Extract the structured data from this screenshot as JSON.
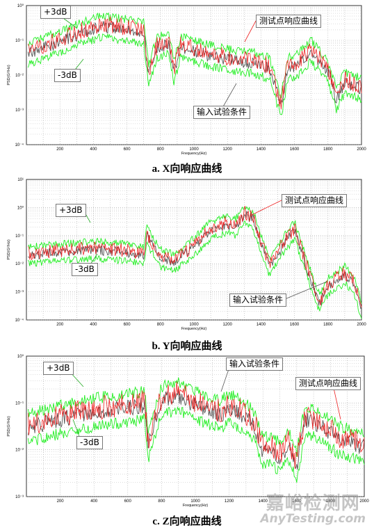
{
  "colors": {
    "tolerance": "#22ee22",
    "response": "#ee2222",
    "input": "#555555",
    "grid": "#9a9a9a"
  },
  "chart_data": [
    {
      "type": "line",
      "caption": "a. X向响应曲线",
      "xlabel": "Frequency(Hz)",
      "ylabel": "PSD(G²/Hz)",
      "xlim": [
        0,
        2000
      ],
      "xticks": [
        200,
        400,
        600,
        800,
        1000,
        1200,
        1400,
        1600,
        1800,
        2000
      ],
      "ylim_exp": [
        -4,
        0
      ],
      "yticks": [
        "10⁰",
        "10⁻¹",
        "10⁻²",
        "10⁻³",
        "10⁻⁴"
      ],
      "log_scale_y": true,
      "grid": true,
      "annotations": {
        "plus": "+3dB",
        "minus": "-3dB",
        "response": "测试点响应曲线",
        "input": "输入试验条件"
      },
      "profile": [
        [
          0,
          -1.4
        ],
        [
          200,
          -1.05
        ],
        [
          350,
          -0.75
        ],
        [
          450,
          -0.6
        ],
        [
          600,
          -0.7
        ],
        [
          700,
          -0.8
        ],
        [
          730,
          -2.0
        ],
        [
          780,
          -1.2
        ],
        [
          850,
          -1.1
        ],
        [
          880,
          -1.9
        ],
        [
          920,
          -1.2
        ],
        [
          1000,
          -1.3
        ],
        [
          1100,
          -1.45
        ],
        [
          1250,
          -1.6
        ],
        [
          1350,
          -1.65
        ],
        [
          1450,
          -1.8
        ],
        [
          1520,
          -2.9
        ],
        [
          1560,
          -1.8
        ],
        [
          1620,
          -1.7
        ],
        [
          1700,
          -1.3
        ],
        [
          1800,
          -1.9
        ],
        [
          1850,
          -2.7
        ],
        [
          1900,
          -2.2
        ],
        [
          2000,
          -2.4
        ]
      ]
    },
    {
      "type": "line",
      "caption": "b. Y向响应曲线",
      "xlabel": "Frequency(Hz)",
      "ylabel": "PSD(G²/Hz)",
      "xlim": [
        0,
        2000
      ],
      "xticks": [
        200,
        400,
        600,
        800,
        1000,
        1200,
        1400,
        1600,
        1800,
        2000
      ],
      "ylim_exp": [
        -4,
        1
      ],
      "yticks": [
        "10¹",
        "10⁰",
        "10⁻¹",
        "10⁻²",
        "10⁻³",
        "10⁻⁴"
      ],
      "log_scale_y": true,
      "grid": true,
      "annotations": {
        "plus": "+3dB",
        "minus": "-3dB",
        "response": "测试点响应曲线",
        "input": "输入试验条件"
      },
      "profile": [
        [
          0,
          -1.7
        ],
        [
          200,
          -1.6
        ],
        [
          400,
          -1.5
        ],
        [
          600,
          -1.6
        ],
        [
          700,
          -1.7
        ],
        [
          720,
          -1.0
        ],
        [
          800,
          -1.8
        ],
        [
          880,
          -1.95
        ],
        [
          1000,
          -1.4
        ],
        [
          1100,
          -0.8
        ],
        [
          1200,
          -0.6
        ],
        [
          1250,
          -0.7
        ],
        [
          1300,
          -0.25
        ],
        [
          1350,
          -0.4
        ],
        [
          1450,
          -2.1
        ],
        [
          1550,
          -1.2
        ],
        [
          1600,
          -0.8
        ],
        [
          1700,
          -2.6
        ],
        [
          1750,
          -3.4
        ],
        [
          1800,
          -2.8
        ],
        [
          1900,
          -2.4
        ],
        [
          1950,
          -2.7
        ],
        [
          2000,
          -3.6
        ]
      ]
    },
    {
      "type": "line",
      "caption": "c. Z向响应曲线",
      "xlabel": "Frequency(Hz)",
      "ylabel": "PSD(G²/Hz)",
      "xlim": [
        0,
        2000
      ],
      "xticks": [
        200,
        400,
        600,
        800,
        1000,
        1200,
        1400,
        1600,
        1800,
        2000
      ],
      "ylim_exp": [
        -3,
        0
      ],
      "yticks": [
        "10⁰",
        "10⁻¹",
        "10⁻²",
        "10⁻³"
      ],
      "log_scale_y": true,
      "grid": true,
      "annotations": {
        "plus": "+3dB",
        "minus": "-3dB",
        "response": "测试点响应曲线",
        "input": "输入试验条件"
      },
      "profile": [
        [
          0,
          -1.55
        ],
        [
          200,
          -1.35
        ],
        [
          400,
          -1.2
        ],
        [
          600,
          -1.1
        ],
        [
          700,
          -1.05
        ],
        [
          720,
          -1.9
        ],
        [
          800,
          -0.95
        ],
        [
          900,
          -0.85
        ],
        [
          1000,
          -1.05
        ],
        [
          1150,
          -1.25
        ],
        [
          1200,
          -1.1
        ],
        [
          1300,
          -1.3
        ],
        [
          1350,
          -1.5
        ],
        [
          1400,
          -2.05
        ],
        [
          1450,
          -2.0
        ],
        [
          1500,
          -2.15
        ],
        [
          1550,
          -1.9
        ],
        [
          1600,
          -2.35
        ],
        [
          1650,
          -1.35
        ],
        [
          1750,
          -1.5
        ],
        [
          1850,
          -1.8
        ],
        [
          1950,
          -1.9
        ],
        [
          2000,
          -1.95
        ]
      ]
    }
  ],
  "watermark": {
    "cn": "嘉峪检测网",
    "en": "AnyTesting.com"
  }
}
